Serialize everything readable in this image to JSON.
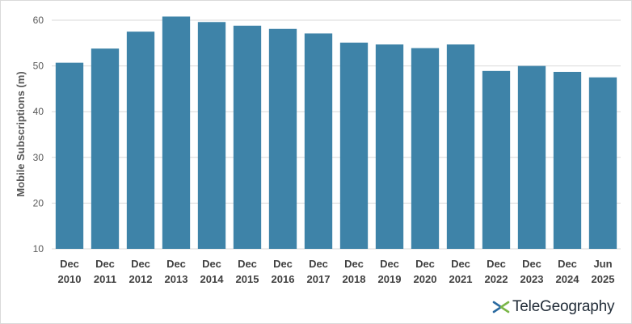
{
  "chart_data": {
    "type": "bar",
    "ylabel": "Mobile Subscriptions (m)",
    "ylim": [
      10,
      60
    ],
    "yticks": [
      10,
      20,
      30,
      40,
      50,
      60
    ],
    "grid": true,
    "bar_color": "#3e83a8",
    "categories": [
      [
        "Dec",
        "2010"
      ],
      [
        "Dec",
        "2011"
      ],
      [
        "Dec",
        "2012"
      ],
      [
        "Dec",
        "2013"
      ],
      [
        "Dec",
        "2014"
      ],
      [
        "Dec",
        "2015"
      ],
      [
        "Dec",
        "2016"
      ],
      [
        "Dec",
        "2017"
      ],
      [
        "Dec",
        "2018"
      ],
      [
        "Dec",
        "2019"
      ],
      [
        "Dec",
        "2020"
      ],
      [
        "Dec",
        "2021"
      ],
      [
        "Dec",
        "2022"
      ],
      [
        "Dec",
        "2023"
      ],
      [
        "Dec",
        "2024"
      ],
      [
        "Jun",
        "2025"
      ]
    ],
    "values": [
      50.7,
      53.8,
      57.5,
      60.8,
      59.6,
      58.8,
      58.1,
      57.1,
      55.1,
      54.7,
      53.9,
      54.7,
      48.9,
      50.0,
      48.7,
      47.5
    ]
  },
  "branding": {
    "logo_text": "TeleGeography",
    "accent_green": "#7ab648",
    "accent_blue": "#2a6aa0"
  }
}
